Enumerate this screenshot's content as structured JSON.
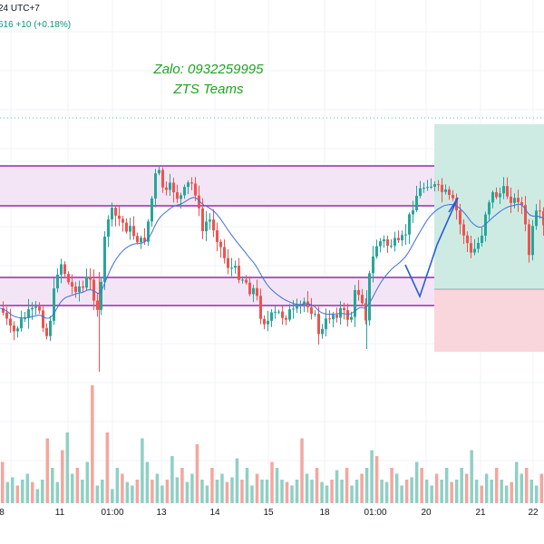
{
  "header": {
    "symbol_line": "24 UTC+7",
    "change_line": "616  +10 (+0.18%)"
  },
  "watermark": {
    "line1": "Zalo: 0932259995",
    "line2": "ZTS Teams"
  },
  "x_axis": {
    "labels": [
      "8",
      "11",
      "01:00",
      "13",
      "14",
      "15",
      "18",
      "01:00",
      "20",
      "21",
      "22"
    ]
  },
  "colors": {
    "up": "#26a69a",
    "down": "#ef5350",
    "ma": "#3f6fd8",
    "zone_line": "#9c27b0",
    "zone_fill": "#f3e5f5",
    "target_fill": "#cdebe3",
    "stop_fill": "#f9d6db",
    "pattern_line": "#2a5bd7"
  },
  "chart_data": {
    "type": "candlestick",
    "title": "",
    "xlabel": "",
    "ylabel": "",
    "x_ticks": [
      "8",
      "11",
      "01:00",
      "13",
      "14",
      "15",
      "18",
      "01:00",
      "20",
      "21",
      "22"
    ],
    "close_path": [
      [
        0,
        340
      ],
      [
        6,
        355
      ],
      [
        12,
        370
      ],
      [
        18,
        360
      ],
      [
        26,
        350
      ],
      [
        34,
        345
      ],
      [
        42,
        340
      ],
      [
        50,
        370
      ],
      [
        55,
        345
      ],
      [
        60,
        310
      ],
      [
        64,
        285
      ],
      [
        70,
        300
      ],
      [
        76,
        318
      ],
      [
        84,
        315
      ],
      [
        90,
        318
      ],
      [
        96,
        305
      ],
      [
        102,
        325
      ],
      [
        108,
        345
      ],
      [
        112,
        290
      ],
      [
        116,
        240
      ],
      [
        122,
        236
      ],
      [
        128,
        240
      ],
      [
        136,
        248
      ],
      [
        142,
        254
      ],
      [
        148,
        260
      ],
      [
        154,
        268
      ],
      [
        158,
        262
      ],
      [
        163,
        240
      ],
      [
        168,
        205
      ],
      [
        172,
        185
      ],
      [
        176,
        200
      ],
      [
        182,
        215
      ],
      [
        188,
        205
      ],
      [
        196,
        220
      ],
      [
        202,
        212
      ],
      [
        208,
        200
      ],
      [
        214,
        210
      ],
      [
        218,
        235
      ],
      [
        222,
        255
      ],
      [
        228,
        240
      ],
      [
        234,
        250
      ],
      [
        238,
        260
      ],
      [
        244,
        280
      ],
      [
        250,
        292
      ],
      [
        256,
        298
      ],
      [
        262,
        302
      ],
      [
        268,
        308
      ],
      [
        274,
        318
      ],
      [
        280,
        320
      ],
      [
        284,
        340
      ],
      [
        288,
        352
      ],
      [
        294,
        355
      ],
      [
        300,
        348
      ],
      [
        306,
        346
      ],
      [
        312,
        348
      ],
      [
        318,
        345
      ],
      [
        324,
        346
      ],
      [
        330,
        338
      ],
      [
        336,
        330
      ],
      [
        342,
        340
      ],
      [
        346,
        352
      ],
      [
        352,
        372
      ],
      [
        356,
        360
      ],
      [
        362,
        348
      ],
      [
        368,
        345
      ],
      [
        374,
        342
      ],
      [
        380,
        350
      ],
      [
        386,
        348
      ],
      [
        390,
        325
      ],
      [
        396,
        320
      ],
      [
        402,
        348
      ],
      [
        406,
        305
      ],
      [
        410,
        285
      ],
      [
        414,
        270
      ],
      [
        420,
        265
      ],
      [
        426,
        270
      ],
      [
        432,
        268
      ],
      [
        438,
        272
      ],
      [
        442,
        265
      ],
      [
        448,
        252
      ],
      [
        452,
        230
      ],
      [
        458,
        215
      ],
      [
        464,
        208
      ],
      [
        470,
        200
      ],
      [
        476,
        205
      ],
      [
        482,
        210
      ],
      [
        488,
        212
      ],
      [
        494,
        220
      ],
      [
        500,
        226
      ],
      [
        506,
        248
      ],
      [
        512,
        262
      ],
      [
        518,
        282
      ],
      [
        522,
        275
      ],
      [
        526,
        268
      ],
      [
        530,
        256
      ],
      [
        536,
        222
      ],
      [
        542,
        215
      ],
      [
        548,
        214
      ],
      [
        554,
        212
      ],
      [
        560,
        215
      ],
      [
        566,
        222
      ],
      [
        572,
        215
      ],
      [
        578,
        252
      ],
      [
        582,
        280
      ],
      [
        586,
        255
      ],
      [
        590,
        238
      ],
      [
        594,
        240
      ],
      [
        600,
        258
      ]
    ],
    "volumes": [
      0.35,
      0.18,
      0.22,
      0.15,
      0.2,
      0.25,
      0.18,
      0.12,
      0.2,
      0.55,
      0.3,
      0.18,
      0.45,
      0.6,
      0.25,
      0.3,
      0.2,
      0.35,
      1.0,
      0.15,
      0.2,
      0.6,
      0.12,
      0.3,
      0.25,
      0.18,
      0.15,
      0.2,
      0.55,
      0.35,
      0.2,
      0.25,
      0.15,
      0.2,
      0.4,
      0.22,
      0.3,
      0.18,
      0.25,
      0.5,
      0.2,
      0.15,
      0.3,
      0.2,
      0.25,
      0.18,
      0.22,
      0.38,
      0.2,
      0.3,
      0.15,
      0.25,
      0.2,
      0.2,
      0.35,
      0.3,
      0.2,
      0.18,
      0.15,
      0.2,
      0.55,
      0.25,
      0.2,
      0.3,
      0.18,
      0.15,
      0.2,
      0.28,
      0.2,
      0.3,
      0.15,
      0.2,
      0.25,
      0.3,
      0.45,
      0.4,
      0.2,
      0.18,
      0.3,
      0.25,
      0.15,
      0.2,
      0.22,
      0.35,
      0.3,
      0.2,
      0.15,
      0.25,
      0.2,
      0.3,
      0.18,
      0.2,
      0.3,
      0.25,
      0.45,
      0.2,
      0.15,
      0.25,
      0.2,
      0.3,
      0.2,
      0.15,
      0.18,
      0.35,
      0.25,
      0.3,
      0.2,
      0.15,
      0.25
    ]
  }
}
